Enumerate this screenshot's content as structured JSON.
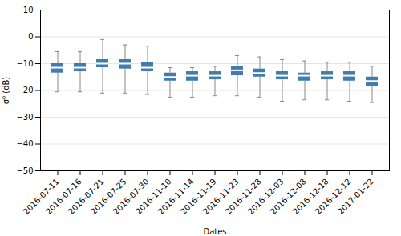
{
  "chart_data": {
    "type": "box",
    "categories": [
      "2016-07-11",
      "2016-07-16",
      "2016-07-21",
      "2016-07-25",
      "2016-07-30",
      "2016-11-10",
      "2016-11-14",
      "2016-11-19",
      "2016-11-23",
      "2016-11-28",
      "2016-12-03",
      "2016-12-08",
      "2016-12-18",
      "2016-12-12",
      "2017-01-22"
    ],
    "whislo": [
      -20.5,
      -20.5,
      -21.0,
      -21.0,
      -21.5,
      -22.5,
      -22.5,
      -22.0,
      -22.0,
      -22.5,
      -24.0,
      -23.5,
      -23.5,
      -24.0,
      -24.5
    ],
    "q1": [
      -13.5,
      -13.0,
      -11.5,
      -12.0,
      -13.0,
      -16.5,
      -16.5,
      -16.0,
      -14.5,
      -15.0,
      -16.0,
      -16.5,
      -16.0,
      -16.5,
      -18.5
    ],
    "med": [
      -11.5,
      -11.5,
      -10.0,
      -10.0,
      -11.5,
      -15.0,
      -14.5,
      -14.5,
      -12.5,
      -13.5,
      -14.5,
      -14.5,
      -14.5,
      -14.5,
      -16.5
    ],
    "q3": [
      -10.0,
      -10.0,
      -8.5,
      -8.5,
      -9.5,
      -13.5,
      -13.0,
      -13.0,
      -11.0,
      -12.0,
      -13.0,
      -13.5,
      -13.0,
      -13.0,
      -15.0
    ],
    "whishi": [
      -5.5,
      -5.5,
      -1.0,
      -3.0,
      -3.5,
      -11.5,
      -11.5,
      -11.0,
      -7.0,
      -7.5,
      -8.5,
      -9.0,
      -9.5,
      -9.5,
      -11.0
    ],
    "color": "#2e6da4",
    "xlabel": "Dates",
    "ylabel": "σ⁰ (dB)",
    "ylim": [
      -50,
      10
    ],
    "yticks": [
      10,
      0,
      -10,
      -20,
      -30,
      -40,
      -50
    ],
    "grid": true
  }
}
